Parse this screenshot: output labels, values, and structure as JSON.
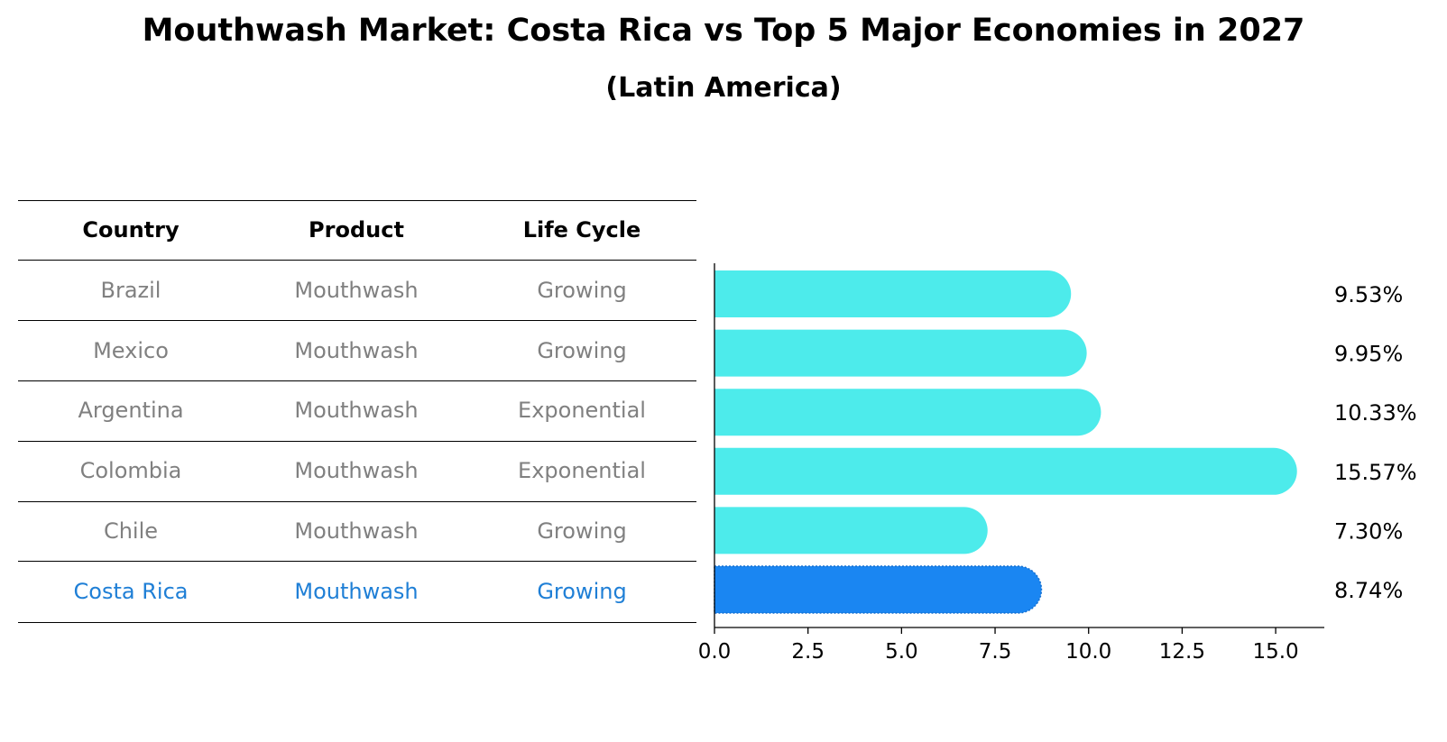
{
  "title": "Mouthwash Market: Costa Rica vs Top 5 Major Economies in 2027",
  "subtitle": "(Latin America)",
  "table": {
    "headers": [
      "Country",
      "Product",
      "Life Cycle"
    ],
    "rows": [
      {
        "country": "Brazil",
        "product": "Mouthwash",
        "life_cycle": "Growing"
      },
      {
        "country": "Mexico",
        "product": "Mouthwash",
        "life_cycle": "Growing"
      },
      {
        "country": "Argentina",
        "product": "Mouthwash",
        "life_cycle": "Exponential"
      },
      {
        "country": "Colombia",
        "product": "Mouthwash",
        "life_cycle": "Exponential"
      },
      {
        "country": "Chile",
        "product": "Mouthwash",
        "life_cycle": "Growing"
      },
      {
        "country": "Costa Rica",
        "product": "Mouthwash",
        "life_cycle": "Growing"
      }
    ]
  },
  "chart_data": {
    "type": "bar",
    "orientation": "horizontal",
    "categories": [
      "Brazil",
      "Mexico",
      "Argentina",
      "Colombia",
      "Chile",
      "Costa Rica"
    ],
    "values": [
      9.53,
      9.95,
      10.33,
      15.57,
      7.3,
      8.74
    ],
    "value_labels": [
      "9.53%",
      "9.95%",
      "10.33%",
      "15.57%",
      "7.30%",
      "8.74%"
    ],
    "highlight": "Costa Rica",
    "xlim": [
      0,
      16.3
    ],
    "xticks": [
      0,
      2.5,
      5,
      7.5,
      10,
      12.5,
      15
    ],
    "xtick_labels": [
      "0.0",
      "2.5",
      "5.0",
      "7.5",
      "10.0",
      "12.5",
      "15.0"
    ],
    "xlabel": "",
    "ylabel": "",
    "grid": false
  },
  "colors": {
    "bar": "#4debeb",
    "highlight_bar": "#1a86f2",
    "highlight_text": "#1f7fd6",
    "muted_text": "#808080"
  }
}
